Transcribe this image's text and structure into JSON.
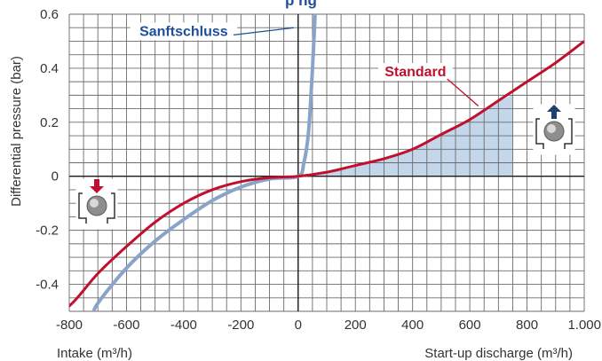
{
  "header": {
    "partial_title": "p ng"
  },
  "chart_data": {
    "type": "line",
    "ylabel": "Differential pressure (bar)",
    "xlabel_left": "Intake (m³/h)",
    "xlabel_right": "Start-up discharge (m³/h)",
    "xlim": [
      -800,
      1000
    ],
    "ylim": [
      -0.5,
      0.6
    ],
    "x_ticks": [
      -800,
      -600,
      -400,
      -200,
      0,
      200,
      400,
      600,
      800,
      1000
    ],
    "x_tick_labels": [
      "-800",
      "-600",
      "-400",
      "-200",
      "0",
      "200",
      "400",
      "600",
      "800",
      "1.000"
    ],
    "y_ticks": [
      -0.4,
      -0.2,
      0,
      0.2,
      0.4,
      0.6
    ],
    "y_tick_labels": [
      "-0.4",
      "-0.2",
      "0",
      "0.2",
      "0.4",
      "0.6"
    ],
    "grid": true,
    "series": [
      {
        "name": "Standard",
        "color": "#c0102e",
        "x": [
          -880,
          -800,
          -700,
          -600,
          -500,
          -400,
          -300,
          -200,
          -100,
          0,
          100,
          200,
          300,
          400,
          500,
          600,
          700,
          800,
          900,
          1000
        ],
        "y": [
          -0.515,
          -0.48,
          -0.36,
          -0.26,
          -0.17,
          -0.1,
          -0.05,
          -0.02,
          -0.005,
          0,
          0.015,
          0.04,
          0.065,
          0.1,
          0.155,
          0.21,
          0.28,
          0.35,
          0.42,
          0.5
        ]
      },
      {
        "name": "Sanftschluss",
        "color": "#8aa3c8",
        "x": [
          -720,
          -700,
          -600,
          -500,
          -400,
          -300,
          -200,
          -100,
          0,
          20,
          35,
          45,
          55,
          60
        ],
        "y": [
          -0.52,
          -0.47,
          -0.34,
          -0.24,
          -0.16,
          -0.09,
          -0.04,
          -0.01,
          0,
          0.05,
          0.15,
          0.3,
          0.5,
          0.62
        ]
      }
    ],
    "shaded_region": {
      "color": "#c3d6ea",
      "x": [
        0,
        100,
        200,
        300,
        400,
        500,
        600,
        700,
        750
      ],
      "y": [
        0,
        0.015,
        0.04,
        0.065,
        0.1,
        0.155,
        0.21,
        0.28,
        0.3
      ]
    },
    "annotations": [
      {
        "text": "Sanftschluss",
        "color": "#1f4e9a",
        "at": [
          -400,
          0.52
        ],
        "points_to": [
          -15,
          0.55
        ]
      },
      {
        "text": "Standard",
        "color": "#c0102e",
        "at": [
          410,
          0.37
        ],
        "points_to": [
          630,
          0.26
        ]
      }
    ],
    "icons": [
      {
        "name": "intake-valve-icon",
        "arrow": "down",
        "arrow_color": "#c0102e"
      },
      {
        "name": "discharge-valve-icon",
        "arrow": "up",
        "arrow_color": "#1f3f73"
      }
    ]
  }
}
